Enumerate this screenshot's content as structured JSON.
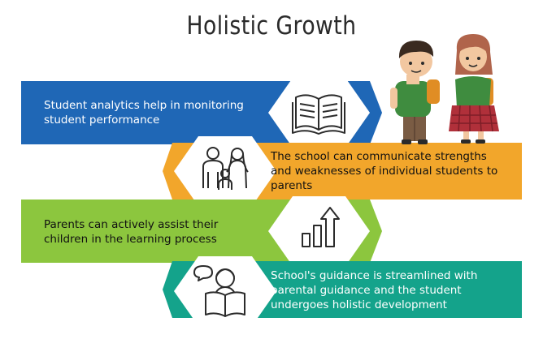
{
  "title": "Holistic Growth",
  "rows": [
    {
      "text": "Student analytics help in monitoring\nstudent performance",
      "icon": "open-book-icon",
      "color": "#1f67b6"
    },
    {
      "text": "The school can communicate strengths\nand weaknesses of individual  students to\nparents",
      "icon": "family-icon",
      "color": "#f2a62b"
    },
    {
      "text": "Parents can actively assist their\nchildren in the learning process",
      "icon": "growth-chart-icon",
      "color": "#8cc63e"
    },
    {
      "text": "School's guidance is streamlined with\nparental guidance and the student\nundergoes holistic development",
      "icon": "student-reading-icon",
      "color": "#14a38b"
    }
  ]
}
